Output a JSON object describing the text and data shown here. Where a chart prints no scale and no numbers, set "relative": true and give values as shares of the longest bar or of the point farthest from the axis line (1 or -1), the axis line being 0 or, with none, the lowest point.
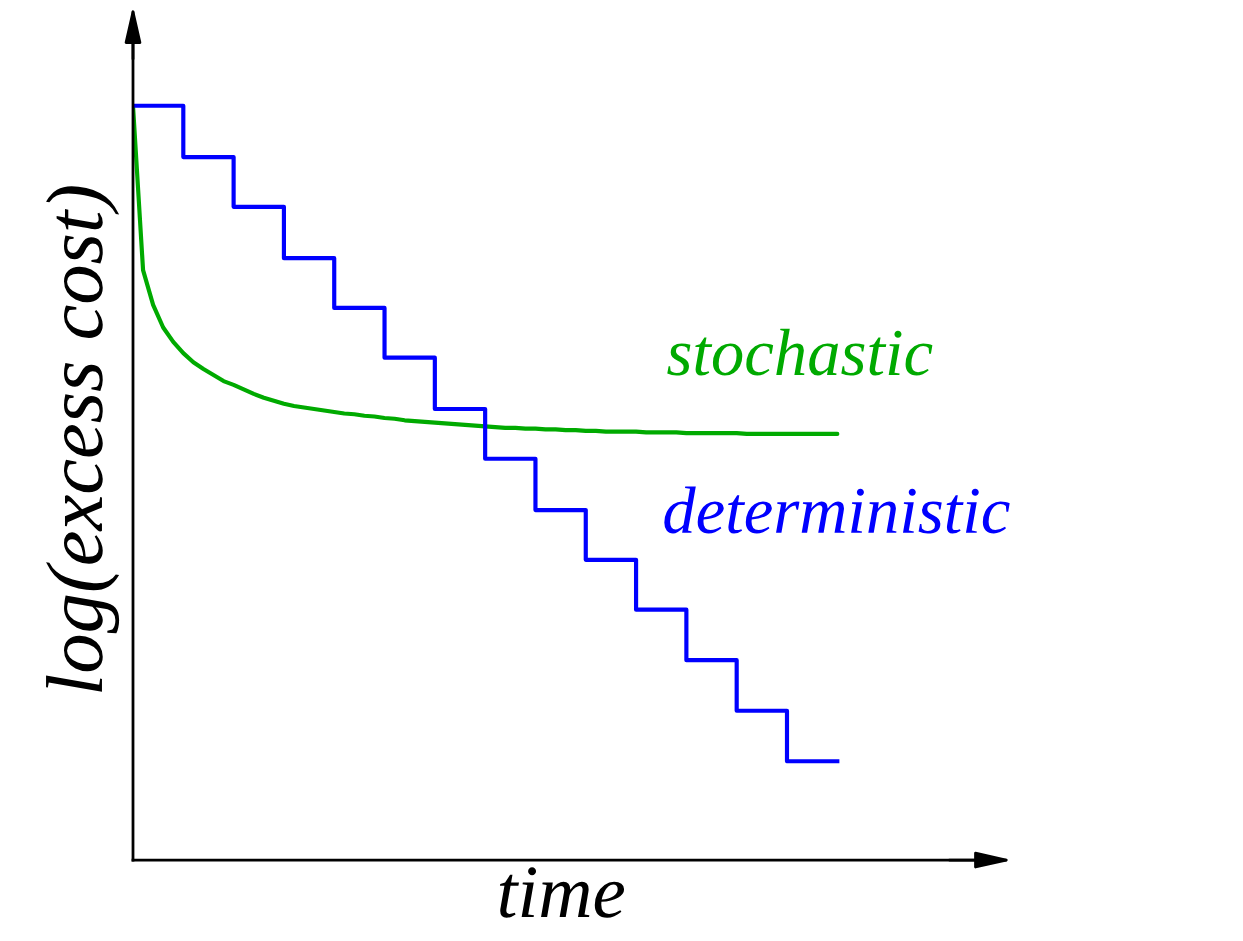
{
  "chart_data": {
    "type": "line",
    "relative": true,
    "xlabel": "time",
    "ylabel": "log(excess cost)",
    "legend": false,
    "categories": [
      null,
      null,
      null,
      null,
      null,
      null,
      null,
      null,
      null,
      null,
      null,
      null,
      null,
      null,
      null,
      null,
      null,
      null,
      null,
      null,
      null,
      null,
      null,
      null,
      null,
      null,
      null,
      null,
      null,
      null,
      null,
      null,
      null,
      null,
      null,
      null,
      null,
      null,
      null,
      null,
      null,
      null,
      null,
      null,
      null,
      null,
      null,
      null,
      null,
      null,
      null,
      null,
      null,
      null,
      null,
      null,
      null,
      null,
      null,
      null,
      null,
      null,
      null,
      null,
      null,
      null,
      null,
      null,
      null,
      null,
      null
    ],
    "series": [
      {
        "name": "stochastic",
        "color": "#00aa00",
        "values": [
          1.0,
          0.782,
          0.736,
          0.706,
          0.687,
          0.672,
          0.66,
          0.651,
          0.643,
          0.635,
          0.63,
          0.624,
          0.618,
          0.613,
          0.609,
          0.605,
          0.602,
          0.6,
          0.598,
          0.596,
          0.594,
          0.592,
          0.591,
          0.589,
          0.588,
          0.586,
          0.585,
          0.583,
          0.582,
          0.581,
          0.58,
          0.579,
          0.578,
          0.577,
          0.576,
          0.575,
          0.574,
          0.573,
          0.573,
          0.572,
          0.572,
          0.571,
          0.571,
          0.57,
          0.57,
          0.569,
          0.569,
          0.568,
          0.568,
          0.568,
          0.568,
          0.567,
          0.567,
          0.567,
          0.567,
          0.566,
          0.566,
          0.566,
          0.566,
          0.566,
          0.566,
          0.565,
          0.565,
          0.565,
          0.565,
          0.565,
          0.565,
          0.565,
          0.565,
          0.565,
          0.565
        ]
      },
      {
        "name": "deterministic",
        "type": "step",
        "color": "#0000ff",
        "values": [
          1.0,
          1.0,
          1.0,
          1.0,
          1.0,
          0.932,
          0.932,
          0.932,
          0.932,
          0.932,
          0.866,
          0.866,
          0.866,
          0.866,
          0.866,
          0.798,
          0.798,
          0.798,
          0.798,
          0.798,
          0.732,
          0.732,
          0.732,
          0.732,
          0.732,
          0.666,
          0.666,
          0.666,
          0.666,
          0.666,
          0.598,
          0.598,
          0.598,
          0.598,
          0.598,
          0.532,
          0.532,
          0.532,
          0.532,
          0.532,
          0.464,
          0.464,
          0.464,
          0.464,
          0.464,
          0.398,
          0.398,
          0.398,
          0.398,
          0.398,
          0.332,
          0.332,
          0.332,
          0.332,
          0.332,
          0.265,
          0.265,
          0.265,
          0.265,
          0.265,
          0.198,
          0.198,
          0.198,
          0.198,
          0.198,
          0.131,
          0.131,
          0.131,
          0.131,
          0.131,
          0.131
        ]
      }
    ]
  }
}
